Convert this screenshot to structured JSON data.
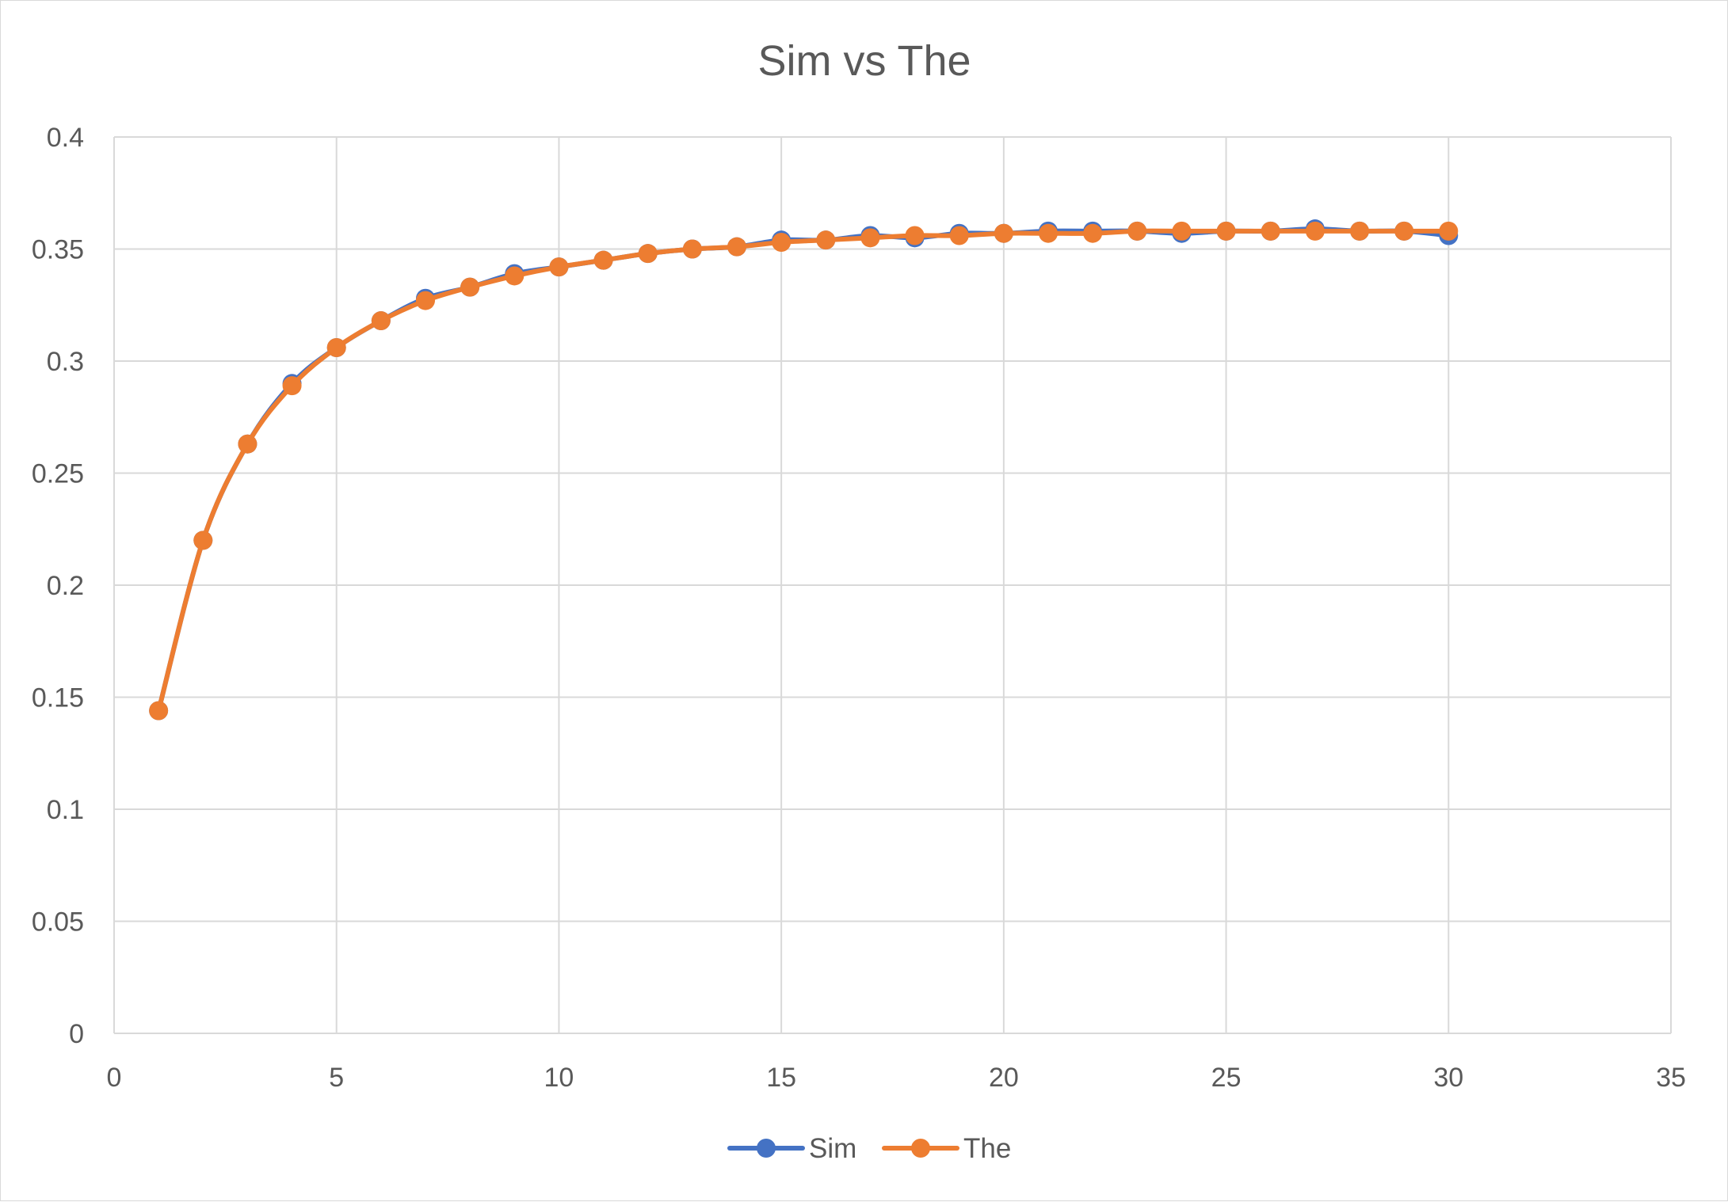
{
  "chart_data": {
    "type": "line",
    "title": "Sim vs The",
    "xlabel": "",
    "ylabel": "",
    "xlim": [
      0,
      35
    ],
    "ylim": [
      0,
      0.4
    ],
    "xticks": [
      0,
      5,
      10,
      15,
      20,
      25,
      30,
      35
    ],
    "yticks": [
      0,
      0.05,
      0.1,
      0.15,
      0.2,
      0.25,
      0.3,
      0.35,
      0.4
    ],
    "xtick_labels": [
      "0",
      "5",
      "10",
      "15",
      "20",
      "25",
      "30",
      "35"
    ],
    "ytick_labels": [
      "0",
      "0.05",
      "0.1",
      "0.15",
      "0.2",
      "0.25",
      "0.3",
      "0.35",
      "0.4"
    ],
    "grid": true,
    "legend_position": "bottom",
    "x": [
      1,
      2,
      3,
      4,
      5,
      6,
      7,
      8,
      9,
      10,
      11,
      12,
      13,
      14,
      15,
      16,
      17,
      18,
      19,
      20,
      21,
      22,
      23,
      24,
      25,
      26,
      27,
      28,
      29,
      30
    ],
    "series": [
      {
        "name": "Sim",
        "color": "#4472C4",
        "values": [
          0.144,
          0.22,
          0.263,
          0.29,
          0.306,
          0.318,
          0.328,
          0.333,
          0.339,
          0.342,
          0.345,
          0.348,
          0.35,
          0.351,
          0.354,
          0.354,
          0.356,
          0.355,
          0.357,
          0.357,
          0.358,
          0.358,
          0.358,
          0.357,
          0.358,
          0.358,
          0.359,
          0.358,
          0.358,
          0.356
        ]
      },
      {
        "name": "The",
        "color": "#ED7D31",
        "values": [
          0.144,
          0.22,
          0.263,
          0.289,
          0.306,
          0.318,
          0.327,
          0.333,
          0.338,
          0.342,
          0.345,
          0.348,
          0.35,
          0.351,
          0.353,
          0.354,
          0.355,
          0.356,
          0.356,
          0.357,
          0.357,
          0.357,
          0.358,
          0.358,
          0.358,
          0.358,
          0.358,
          0.358,
          0.358,
          0.358
        ]
      }
    ]
  }
}
